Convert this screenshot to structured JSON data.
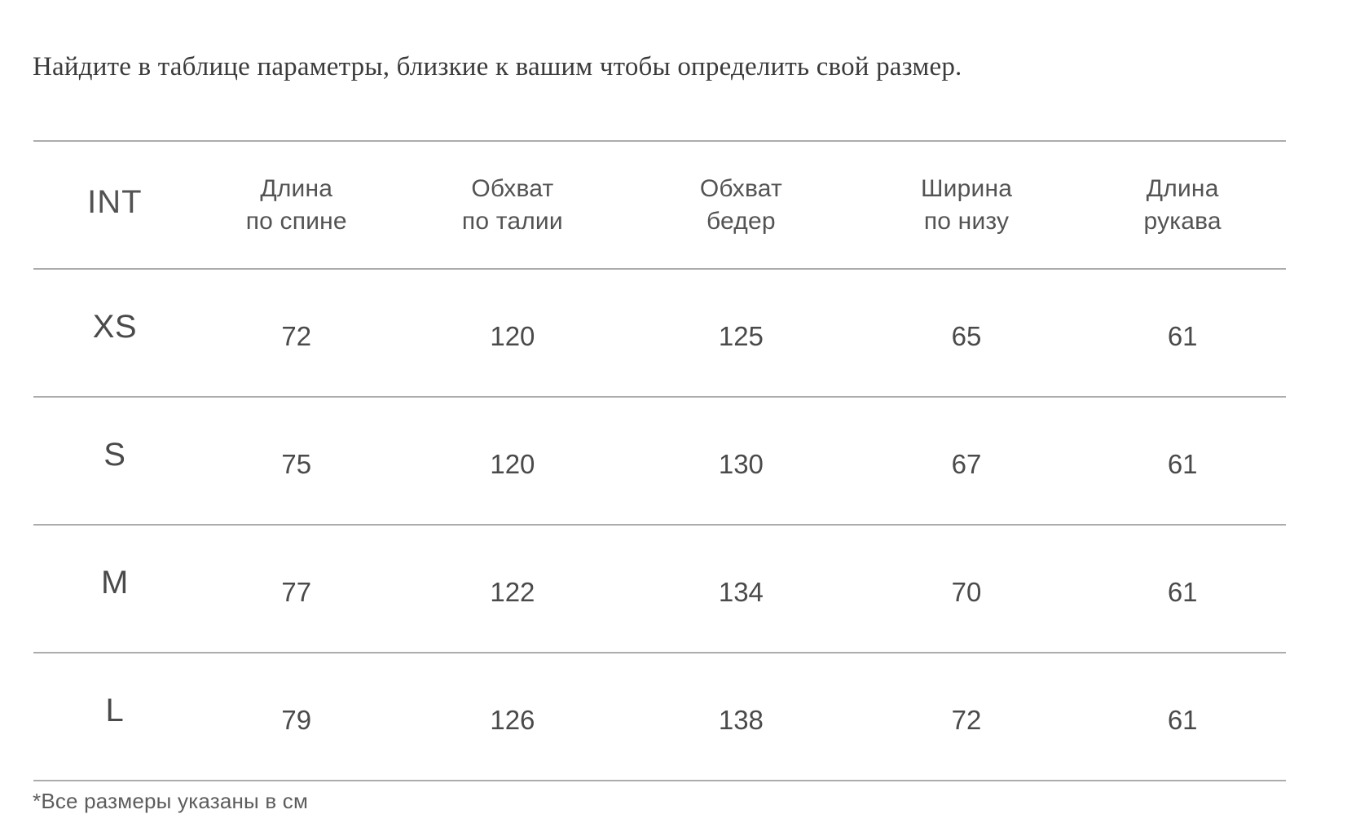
{
  "page": {
    "title": "Найдите в таблице параметры, близкие к вашим чтобы определить свой размер.",
    "footnote": "*Все размеры указаны в см"
  },
  "size_table": {
    "columns": [
      {
        "line1": "INT",
        "line2": ""
      },
      {
        "line1": "Длина",
        "line2": "по спине"
      },
      {
        "line1": "Обхват",
        "line2": "по талии"
      },
      {
        "line1": "Обхват",
        "line2": "бедер"
      },
      {
        "line1": "Ширина",
        "line2": "по низу"
      },
      {
        "line1": "Длина",
        "line2": "рукава"
      }
    ],
    "rows": [
      {
        "size": "XS",
        "values": [
          72,
          120,
          125,
          65,
          61
        ]
      },
      {
        "size": "S",
        "values": [
          75,
          120,
          130,
          67,
          61
        ]
      },
      {
        "size": "M",
        "values": [
          77,
          122,
          134,
          70,
          61
        ]
      },
      {
        "size": "L",
        "values": [
          79,
          126,
          138,
          72,
          61
        ]
      }
    ]
  },
  "theme": {
    "line_color": "#aeabad",
    "title_text": "#3b3b3b",
    "header_text": "#535353",
    "table_text": "#4a4a4a",
    "footnote_text": "#5d5d5d",
    "bg": "#ffffff"
  }
}
